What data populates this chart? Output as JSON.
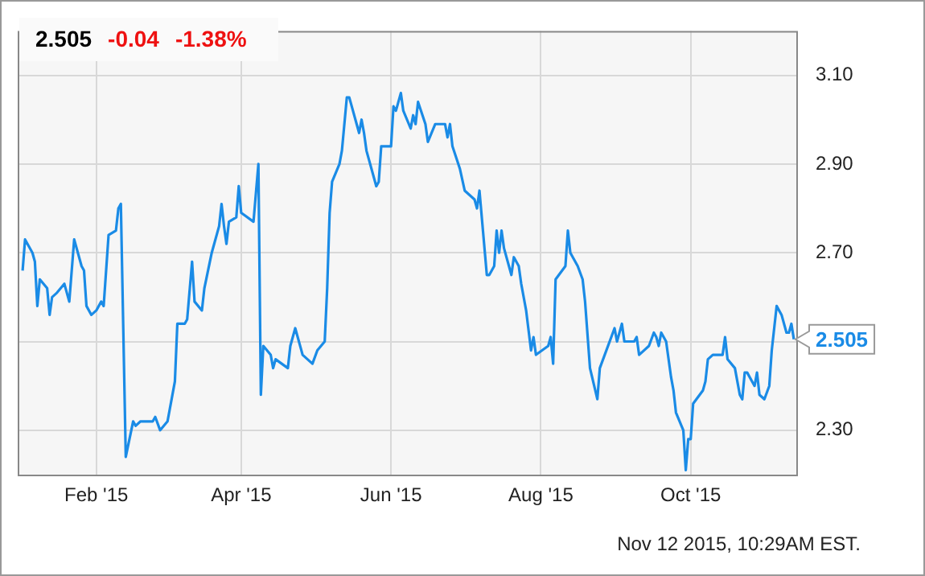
{
  "chart_data": {
    "type": "line",
    "title": "2.505",
    "annotations": [
      "-0.04",
      "-1.38%",
      "Nov 12 2015, 10:29AM EST.",
      {
        "text": "2.505",
        "x": "2015-11-12",
        "y": 2.505
      }
    ],
    "x": [
      "2015-01-02",
      "2015-01-03",
      "2015-01-06",
      "2015-01-07",
      "2015-01-08",
      "2015-01-09",
      "2015-01-12",
      "2015-01-13",
      "2015-01-14",
      "2015-01-16",
      "2015-01-19",
      "2015-01-21",
      "2015-01-23",
      "2015-01-26",
      "2015-01-27",
      "2015-01-28",
      "2015-01-30",
      "2015-02-01",
      "2015-02-03",
      "2015-02-04",
      "2015-02-06",
      "2015-02-09",
      "2015-02-10",
      "2015-02-11",
      "2015-02-13",
      "2015-02-16",
      "2015-02-17",
      "2015-02-19",
      "2015-02-24",
      "2015-02-25",
      "2015-02-27",
      "2015-03-02",
      "2015-03-05",
      "2015-03-06",
      "2015-03-09",
      "2015-03-10",
      "2015-03-12",
      "2015-03-13",
      "2015-03-16",
      "2015-03-17",
      "2015-03-20",
      "2015-03-23",
      "2015-03-24",
      "2015-03-25",
      "2015-03-26",
      "2015-03-27",
      "2015-03-30",
      "2015-03-31",
      "2015-04-01",
      "2015-04-06",
      "2015-04-08",
      "2015-04-09",
      "2015-04-10",
      "2015-04-13",
      "2015-04-14",
      "2015-04-15",
      "2015-04-20",
      "2015-04-21",
      "2015-04-23",
      "2015-04-26",
      "2015-04-30",
      "2015-05-02",
      "2015-05-05",
      "2015-05-06",
      "2015-05-07",
      "2015-05-08",
      "2015-05-11",
      "2015-05-12",
      "2015-05-14",
      "2015-05-15",
      "2015-05-18",
      "2015-05-19",
      "2015-05-20",
      "2015-05-21",
      "2015-05-22",
      "2015-05-26",
      "2015-05-27",
      "2015-05-28",
      "2015-06-01",
      "2015-06-02",
      "2015-06-03",
      "2015-06-05",
      "2015-06-06",
      "2015-06-09",
      "2015-06-10",
      "2015-06-11",
      "2015-06-12",
      "2015-06-15",
      "2015-06-16",
      "2015-06-19",
      "2015-06-23",
      "2015-06-24",
      "2015-06-25",
      "2015-06-26",
      "2015-06-29",
      "2015-07-01",
      "2015-07-05",
      "2015-07-06",
      "2015-07-07",
      "2015-07-10",
      "2015-07-11",
      "2015-07-13",
      "2015-07-14",
      "2015-07-15",
      "2015-07-16",
      "2015-07-17",
      "2015-07-20",
      "2015-07-21",
      "2015-07-23",
      "2015-07-24",
      "2015-07-26",
      "2015-07-28",
      "2015-07-29",
      "2015-07-30",
      "2015-08-04",
      "2015-08-05",
      "2015-08-06",
      "2015-08-07",
      "2015-08-11",
      "2015-08-12",
      "2015-08-13",
      "2015-08-16",
      "2015-08-18",
      "2015-08-19",
      "2015-08-21",
      "2015-08-24",
      "2015-08-25",
      "2015-08-31",
      "2015-09-01",
      "2015-09-03",
      "2015-09-04",
      "2015-09-08",
      "2015-09-09",
      "2015-09-10",
      "2015-09-14",
      "2015-09-16",
      "2015-09-17",
      "2015-09-18",
      "2015-09-19",
      "2015-09-21",
      "2015-09-23",
      "2015-09-24",
      "2015-09-25",
      "2015-09-28",
      "2015-09-29",
      "2015-09-30",
      "2015-10-01",
      "2015-10-02",
      "2015-10-06",
      "2015-10-07",
      "2015-10-08",
      "2015-10-10",
      "2015-10-14",
      "2015-10-15",
      "2015-10-16",
      "2015-10-19",
      "2015-10-21",
      "2015-10-22",
      "2015-10-23",
      "2015-10-24",
      "2015-10-26",
      "2015-10-27",
      "2015-10-28",
      "2015-10-29",
      "2015-10-31",
      "2015-11-02",
      "2015-11-03",
      "2015-11-05",
      "2015-11-07",
      "2015-11-09",
      "2015-11-10",
      "2015-11-11",
      "2015-11-12"
    ],
    "series": [
      {
        "color": "#1a8be6",
        "values": [
          2.66,
          2.73,
          2.7,
          2.68,
          2.58,
          2.64,
          2.62,
          2.56,
          2.6,
          2.61,
          2.63,
          2.59,
          2.73,
          2.67,
          2.66,
          2.58,
          2.56,
          2.57,
          2.59,
          2.58,
          2.74,
          2.75,
          2.8,
          2.81,
          2.24,
          2.32,
          2.31,
          2.32,
          2.32,
          2.33,
          2.3,
          2.32,
          2.41,
          2.54,
          2.54,
          2.55,
          2.68,
          2.59,
          2.57,
          2.62,
          2.7,
          2.76,
          2.81,
          2.76,
          2.72,
          2.77,
          2.78,
          2.85,
          2.79,
          2.77,
          2.9,
          2.38,
          2.49,
          2.47,
          2.44,
          2.46,
          2.44,
          2.49,
          2.53,
          2.47,
          2.45,
          2.48,
          2.5,
          2.62,
          2.79,
          2.86,
          2.9,
          2.93,
          3.05,
          3.05,
          2.99,
          2.97,
          3.0,
          2.97,
          2.93,
          2.85,
          2.86,
          2.94,
          2.94,
          3.03,
          3.02,
          3.06,
          3.02,
          2.98,
          3.01,
          2.99,
          3.04,
          2.99,
          2.95,
          2.99,
          2.99,
          2.96,
          2.99,
          2.94,
          2.89,
          2.84,
          2.82,
          2.8,
          2.84,
          2.65,
          2.65,
          2.67,
          2.75,
          2.7,
          2.75,
          2.71,
          2.65,
          2.69,
          2.67,
          2.63,
          2.57,
          2.48,
          2.51,
          2.47,
          2.49,
          2.51,
          2.45,
          2.64,
          2.67,
          2.75,
          2.7,
          2.67,
          2.64,
          2.59,
          2.44,
          2.37,
          2.44,
          2.53,
          2.5,
          2.54,
          2.5,
          2.5,
          2.51,
          2.47,
          2.49,
          2.52,
          2.51,
          2.49,
          2.52,
          2.5,
          2.42,
          2.39,
          2.34,
          2.3,
          2.21,
          2.28,
          2.28,
          2.36,
          2.39,
          2.41,
          2.46,
          2.47,
          2.47,
          2.51,
          2.46,
          2.44,
          2.38,
          2.37,
          2.43,
          2.43,
          2.41,
          2.4,
          2.43,
          2.38,
          2.37,
          2.4,
          2.48,
          2.58,
          2.56,
          2.52,
          2.52,
          2.54,
          2.505
        ]
      }
    ],
    "xlim": [
      "2014-12-31",
      "2015-11-13"
    ],
    "xticks": [
      {
        "value": "2015-02-01",
        "label": "Feb '15"
      },
      {
        "value": "2015-04-01",
        "label": "Apr '15"
      },
      {
        "value": "2015-06-01",
        "label": "Jun '15"
      },
      {
        "value": "2015-08-01",
        "label": "Aug '15"
      },
      {
        "value": "2015-10-01",
        "label": "Oct '15"
      }
    ],
    "ylim": [
      2.2,
      3.2
    ],
    "yticks": [
      {
        "value": 2.3,
        "label": "2.30"
      },
      {
        "value": 2.5,
        "label": null
      },
      {
        "value": 2.7,
        "label": "2.70"
      },
      {
        "value": 2.9,
        "label": "2.90"
      },
      {
        "value": 3.1,
        "label": "3.10"
      }
    ],
    "grid": true,
    "legend": false,
    "marker": "none",
    "line_style": "solid"
  }
}
